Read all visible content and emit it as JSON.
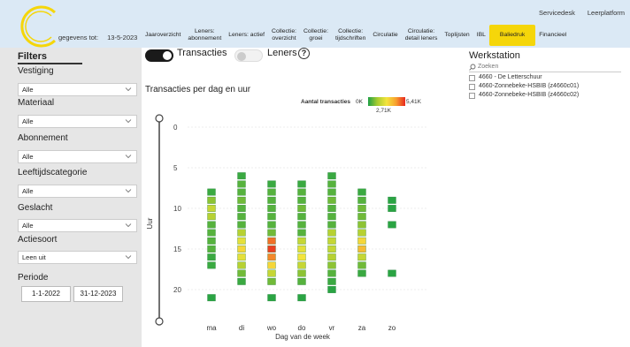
{
  "header": {
    "gegevens_label": "gegevens tot:",
    "gegevens_date": "13-5-2023",
    "links": [
      "Servicedesk",
      "Leerplatform"
    ],
    "nav": [
      {
        "label": "Jaaroverzicht",
        "active": false
      },
      {
        "label": "Leners:\nabonnement",
        "active": false
      },
      {
        "label": "Leners: actief",
        "active": false
      },
      {
        "label": "Collectie:\noverzicht",
        "active": false
      },
      {
        "label": "Collectie:\ngroei",
        "active": false
      },
      {
        "label": "Collectie:\ntijdschriften",
        "active": false
      },
      {
        "label": "Circulatie",
        "active": false
      },
      {
        "label": "Circulatie:\ndetail leners",
        "active": false
      },
      {
        "label": "Toplijsten",
        "active": false
      },
      {
        "label": "IBL",
        "active": false
      },
      {
        "label": "Baliedruk",
        "active": true
      },
      {
        "label": "Financieel",
        "active": false
      }
    ]
  },
  "sidebar": {
    "title": "Filters",
    "filters": [
      {
        "label": "Vestiging",
        "value": "Alle"
      },
      {
        "label": "Materiaal",
        "value": "Alle"
      },
      {
        "label": "Abonnement",
        "value": "Alle"
      },
      {
        "label": "Leeftijdscategorie",
        "value": "Alle"
      },
      {
        "label": "Geslacht",
        "value": "Alle"
      },
      {
        "label": "Actiesoort",
        "value": "Leen uit"
      }
    ],
    "periode_label": "Periode",
    "periode_start": "1-1-2022",
    "periode_end": "31-12-2023"
  },
  "toggles": {
    "transacties": {
      "label": "Transacties",
      "on": true
    },
    "leners": {
      "label": "Leners",
      "on": false
    }
  },
  "colors": {
    "accent": "#f5d60a",
    "header_bg": "#dbe9f5",
    "toggle_on": "#1a1a1a"
  },
  "chart": {
    "title": "Transacties per dag en uur",
    "legend_label": "Aantal transacties",
    "legend_min": "0K",
    "legend_max": "5,41K",
    "legend_mid": "2,71K"
  },
  "workstation": {
    "title": "Werkstation",
    "search_placeholder": "Zoeken",
    "items": [
      "4660 - De Letterschuur",
      "4660-Zonnebeke-HSBIB (z4660c01)",
      "4660-Zonnebeke-HSBIB (z4660c02)"
    ]
  },
  "chart_data": {
    "type": "heatmap",
    "title": "Transacties per dag en uur",
    "xlabel": "Dag van de week",
    "ylabel": "Uur",
    "x_categories": [
      "ma",
      "di",
      "wo",
      "do",
      "vr",
      "za",
      "zo"
    ],
    "y_ticks": [
      0,
      5,
      10,
      15,
      20
    ],
    "ylim": [
      0,
      23
    ],
    "color_scale": {
      "label": "Aantal transacties",
      "min": 0,
      "max": 5410,
      "colors": [
        "#1fa045",
        "#a8cc30",
        "#f4e43c",
        "#f7a02e",
        "#e8281e"
      ]
    },
    "cells": [
      {
        "day": "ma",
        "hours": [
          8,
          9,
          10,
          11,
          12,
          13,
          14,
          15,
          16,
          17,
          21
        ],
        "levels": [
          0.05,
          0.2,
          0.35,
          0.3,
          0.1,
          0.1,
          0.1,
          0.1,
          0.05,
          0.05,
          0.02
        ]
      },
      {
        "day": "di",
        "hours": [
          6,
          7,
          8,
          9,
          10,
          11,
          12,
          13,
          14,
          15,
          16,
          17,
          18,
          19
        ],
        "levels": [
          0.05,
          0.1,
          0.1,
          0.15,
          0.1,
          0.1,
          0.1,
          0.3,
          0.45,
          0.55,
          0.45,
          0.3,
          0.15,
          0.05
        ]
      },
      {
        "day": "wo",
        "hours": [
          7,
          8,
          9,
          10,
          11,
          12,
          13,
          14,
          15,
          16,
          17,
          18,
          19,
          21
        ],
        "levels": [
          0.05,
          0.1,
          0.1,
          0.1,
          0.1,
          0.1,
          0.15,
          0.85,
          0.95,
          0.8,
          0.55,
          0.35,
          0.15,
          0.02
        ]
      },
      {
        "day": "do",
        "hours": [
          7,
          8,
          9,
          10,
          11,
          12,
          13,
          14,
          15,
          16,
          17,
          18,
          19,
          21
        ],
        "levels": [
          0.05,
          0.1,
          0.1,
          0.15,
          0.1,
          0.1,
          0.1,
          0.35,
          0.45,
          0.5,
          0.35,
          0.2,
          0.1,
          0.02
        ]
      },
      {
        "day": "vr",
        "hours": [
          6,
          7,
          8,
          9,
          10,
          11,
          12,
          13,
          14,
          15,
          16,
          17,
          18,
          19,
          20
        ],
        "levels": [
          0.05,
          0.1,
          0.1,
          0.15,
          0.1,
          0.1,
          0.1,
          0.3,
          0.35,
          0.35,
          0.3,
          0.2,
          0.1,
          0.05,
          0.02
        ]
      },
      {
        "day": "za",
        "hours": [
          8,
          9,
          10,
          11,
          12,
          13,
          14,
          15,
          16,
          17,
          18
        ],
        "levels": [
          0.05,
          0.1,
          0.15,
          0.15,
          0.2,
          0.3,
          0.55,
          0.65,
          0.35,
          0.15,
          0.05
        ]
      },
      {
        "day": "zo",
        "hours": [
          9,
          10,
          12,
          18
        ],
        "levels": [
          0.02,
          0.02,
          0.02,
          0.02
        ]
      }
    ]
  }
}
